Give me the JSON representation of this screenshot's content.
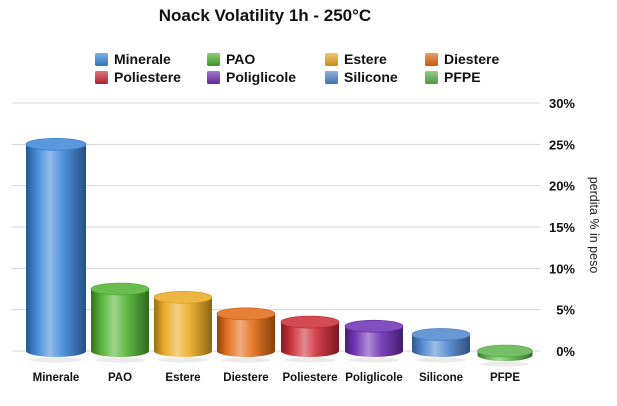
{
  "chart_data": {
    "type": "bar",
    "title": "Noack Volatility 1h - 250°C",
    "ylabel": "perdita % in peso",
    "xlabel": "",
    "ylim": [
      0,
      30
    ],
    "yticks": [
      0,
      5,
      10,
      15,
      20,
      25,
      30
    ],
    "ytick_labels": [
      "0%",
      "5%",
      "10%",
      "15%",
      "20%",
      "25%",
      "30%"
    ],
    "grid": true,
    "legend_position": "top",
    "categories": [
      "Minerale",
      "PAO",
      "Estere",
      "Diestere",
      "Poliestere",
      "Poliglicole",
      "Silicone",
      "PFPE"
    ],
    "values": [
      25,
      7.5,
      6.5,
      4.5,
      3.5,
      3,
      2,
      -0.5
    ],
    "colors": [
      "#3a86d8",
      "#4eb02f",
      "#e9a91e",
      "#e26a14",
      "#cc2a36",
      "#6d2fb4",
      "#4f86cf",
      "#5cb34a"
    ],
    "legend": [
      "Minerale",
      "PAO",
      "Estere",
      "Diestere",
      "Poliestere",
      "Poliglicole",
      "Silicone",
      "PFPE"
    ]
  }
}
